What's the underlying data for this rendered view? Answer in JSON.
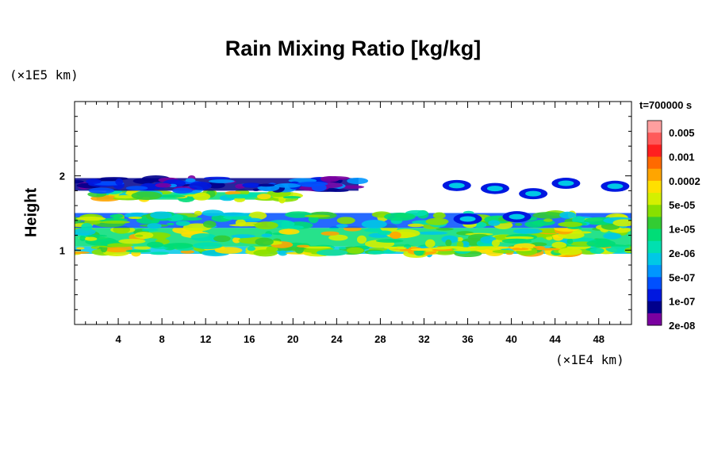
{
  "chart_data": {
    "type": "heatmap",
    "title": "Rain Mixing Ratio [kg/kg]",
    "ylabel": "Height",
    "x_unit": "(×1E4 km)",
    "y_unit": "(×1E5 km)",
    "time_label": "t=700000 s",
    "xlim": [
      0,
      51
    ],
    "ylim": [
      0,
      3
    ],
    "x_ticks": [
      "4",
      "8",
      "12",
      "16",
      "20",
      "24",
      "28",
      "32",
      "36",
      "40",
      "44",
      "48"
    ],
    "x_tick_values": [
      4,
      8,
      12,
      16,
      20,
      24,
      28,
      32,
      36,
      40,
      44,
      48
    ],
    "y_ticks": [
      "1",
      "2"
    ],
    "y_tick_values": [
      1,
      2
    ],
    "colorbar": {
      "labels": [
        "0.005",
        "0.001",
        "0.0002",
        "5e-05",
        "1e-05",
        "2e-06",
        "5e-07",
        "1e-07",
        "2e-08"
      ],
      "colors": [
        "#ff9f9f",
        "#ff5a5a",
        "#ff1f1f",
        "#ff6a00",
        "#ffa500",
        "#ffe000",
        "#d4f000",
        "#88e000",
        "#33cc33",
        "#00dd77",
        "#00e0b0",
        "#00c8e6",
        "#0096ff",
        "#0050ff",
        "#0018e0",
        "#00008c",
        "#7a00a0"
      ]
    },
    "bands": [
      {
        "y_bottom": 0.95,
        "y_top": 1.05,
        "x_start": 0,
        "x_end": 51,
        "level": "2e-06"
      },
      {
        "y_bottom": 1.05,
        "y_top": 1.3,
        "x_start": 0,
        "x_end": 51,
        "level": "1e-05"
      },
      {
        "y_bottom": 1.3,
        "y_top": 1.5,
        "x_start": 0,
        "x_end": 51,
        "level": "5e-07"
      },
      {
        "y_bottom": 1.68,
        "y_top": 1.78,
        "x_start": 2,
        "x_end": 20,
        "level": "1e-05"
      },
      {
        "y_bottom": 1.8,
        "y_top": 1.97,
        "x_start": 0,
        "x_end": 26,
        "level": "1e-07"
      }
    ]
  },
  "colors": {
    "frame": "#000000",
    "background": "#ffffff"
  }
}
